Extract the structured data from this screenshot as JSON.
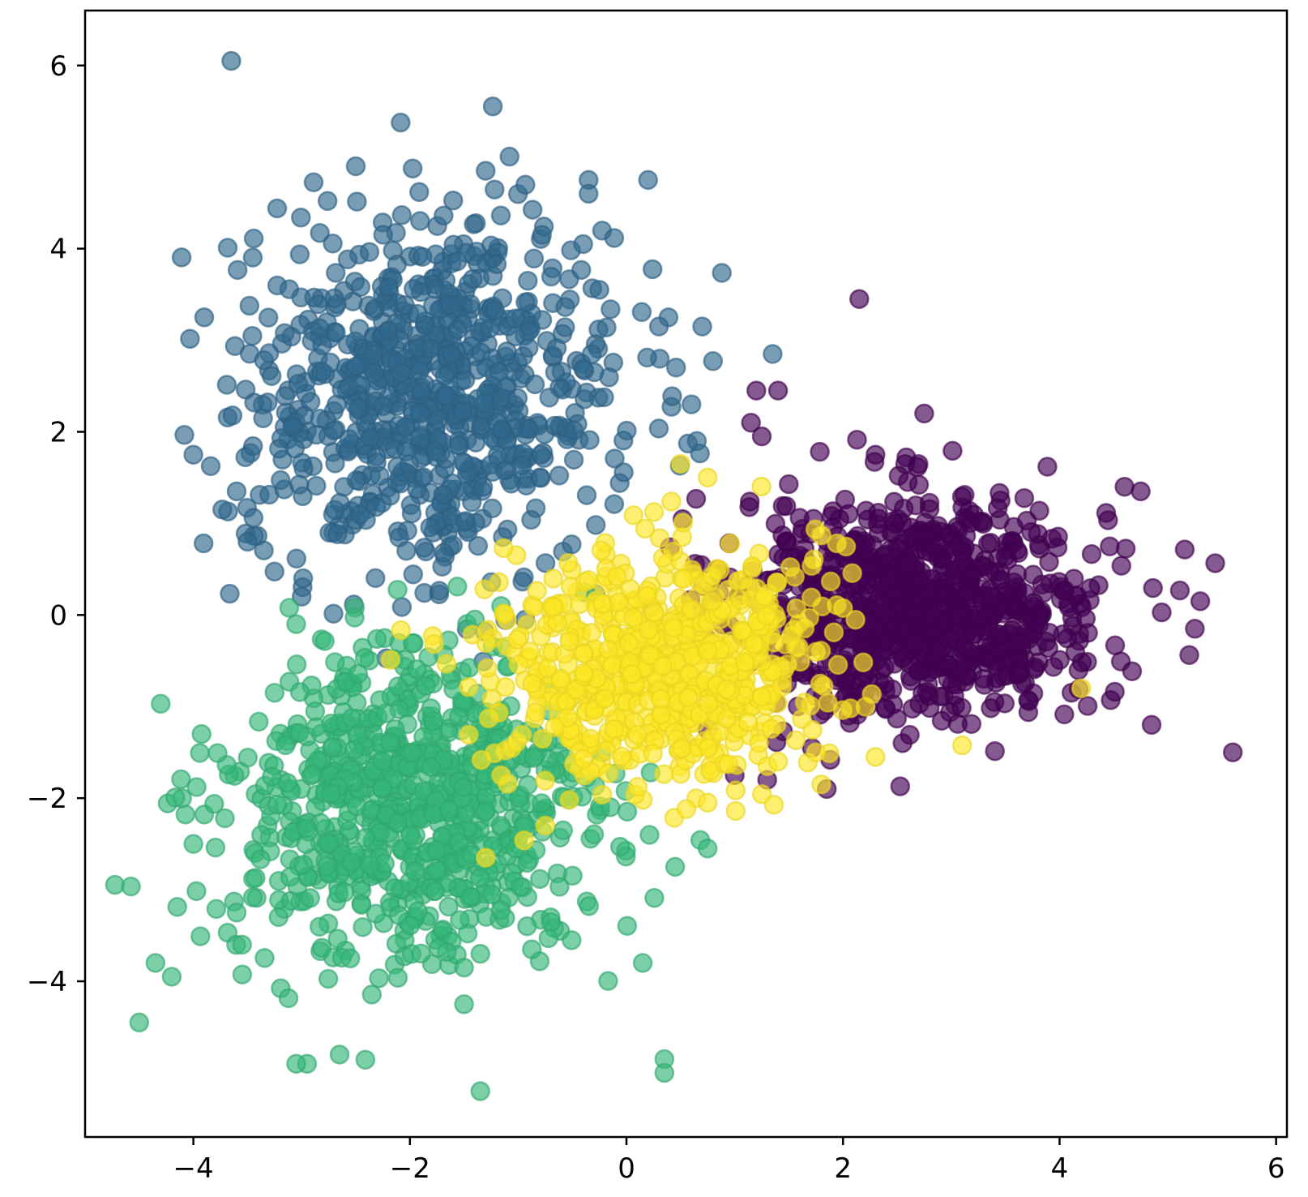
{
  "chart_data": {
    "type": "scatter",
    "title": "",
    "xlabel": "",
    "ylabel": "",
    "xlim": [
      -5.0,
      6.1
    ],
    "ylim": [
      -5.7,
      6.6
    ],
    "grid": false,
    "legend": "none",
    "x_ticks": [
      -4,
      -2,
      0,
      2,
      4,
      6
    ],
    "x_tick_labels": [
      "−4",
      "−2",
      "0",
      "2",
      "4",
      "6"
    ],
    "y_ticks": [
      -4,
      -2,
      0,
      2,
      4,
      6
    ],
    "y_tick_labels": [
      "−4",
      "−2",
      "0",
      "2",
      "4",
      "6"
    ],
    "marker_alpha": 0.65,
    "series": [
      {
        "color": "#440154",
        "center": [
          2.7,
          0.1
        ],
        "spread": [
          0.85,
          0.6
        ],
        "count": 900,
        "outliers": [
          [
            2.15,
            3.45
          ],
          [
            1.4,
            2.45
          ],
          [
            1.2,
            2.45
          ],
          [
            2.75,
            2.2
          ],
          [
            1.15,
            2.1
          ],
          [
            1.25,
            1.95
          ],
          [
            2.3,
            1.75
          ],
          [
            4.6,
            1.4
          ],
          [
            4.75,
            1.35
          ],
          [
            5.3,
            0.15
          ],
          [
            5.25,
            -0.15
          ],
          [
            4.85,
            -1.2
          ],
          [
            5.6,
            -1.5
          ],
          [
            1.0,
            -1.75
          ],
          [
            1.3,
            -1.8
          ],
          [
            1.85,
            -1.9
          ],
          [
            0.75,
            -1.25
          ],
          [
            2.55,
            -1.4
          ]
        ]
      },
      {
        "color": "#31688e",
        "center": [
          -1.8,
          2.4
        ],
        "spread": [
          0.85,
          0.95
        ],
        "count": 800,
        "outliers": [
          [
            -3.65,
            6.05
          ],
          [
            -2.5,
            4.9
          ],
          [
            -1.3,
            4.85
          ],
          [
            0.2,
            4.75
          ],
          [
            -0.35,
            4.75
          ],
          [
            -0.35,
            4.6
          ],
          [
            -0.4,
            4.05
          ],
          [
            -3.9,
            3.25
          ],
          [
            -4.0,
            1.75
          ],
          [
            -3.6,
            1.35
          ],
          [
            0.7,
            3.15
          ],
          [
            1.35,
            2.85
          ],
          [
            0.65,
            1.9
          ],
          [
            0.6,
            2.3
          ],
          [
            -3.0,
            0.2
          ],
          [
            -3.5,
            0.8
          ],
          [
            -0.25,
            3.55
          ],
          [
            0.3,
            3.15
          ]
        ]
      },
      {
        "color": "#35b779",
        "center": [
          -2.0,
          -2.1
        ],
        "spread": [
          0.85,
          0.85
        ],
        "count": 800,
        "outliers": [
          [
            -4.5,
            -4.45
          ],
          [
            -4.35,
            -3.8
          ],
          [
            -4.2,
            -3.95
          ],
          [
            -4.0,
            -2.5
          ],
          [
            -3.6,
            -3.25
          ],
          [
            -3.55,
            -3.6
          ],
          [
            -2.95,
            -4.9
          ],
          [
            -3.05,
            -4.9
          ],
          [
            -2.65,
            -4.8
          ],
          [
            -1.35,
            -5.2
          ],
          [
            -1.5,
            -4.25
          ],
          [
            -1.5,
            -3.85
          ],
          [
            -1.35,
            -3.7
          ],
          [
            0.15,
            -3.8
          ],
          [
            0.35,
            -4.85
          ],
          [
            0.35,
            -5.0
          ],
          [
            0.45,
            -2.75
          ],
          [
            0.75,
            -2.55
          ],
          [
            -3.05,
            -0.1
          ],
          [
            -3.25,
            -0.85
          ],
          [
            -2.55,
            -3.75
          ]
        ]
      },
      {
        "color": "#fde725",
        "center": [
          0.3,
          -0.55
        ],
        "spread": [
          0.75,
          0.65
        ],
        "count": 700,
        "outliers": [
          [
            0.5,
            1.65
          ],
          [
            0.75,
            1.5
          ],
          [
            1.8,
            -1.85
          ],
          [
            1.75,
            -1.5
          ],
          [
            2.3,
            -1.55
          ],
          [
            4.2,
            -0.8
          ],
          [
            0.75,
            -2.05
          ],
          [
            1.4,
            -1.6
          ],
          [
            -0.75,
            -2.3
          ],
          [
            -1.3,
            -2.65
          ]
        ]
      }
    ]
  }
}
